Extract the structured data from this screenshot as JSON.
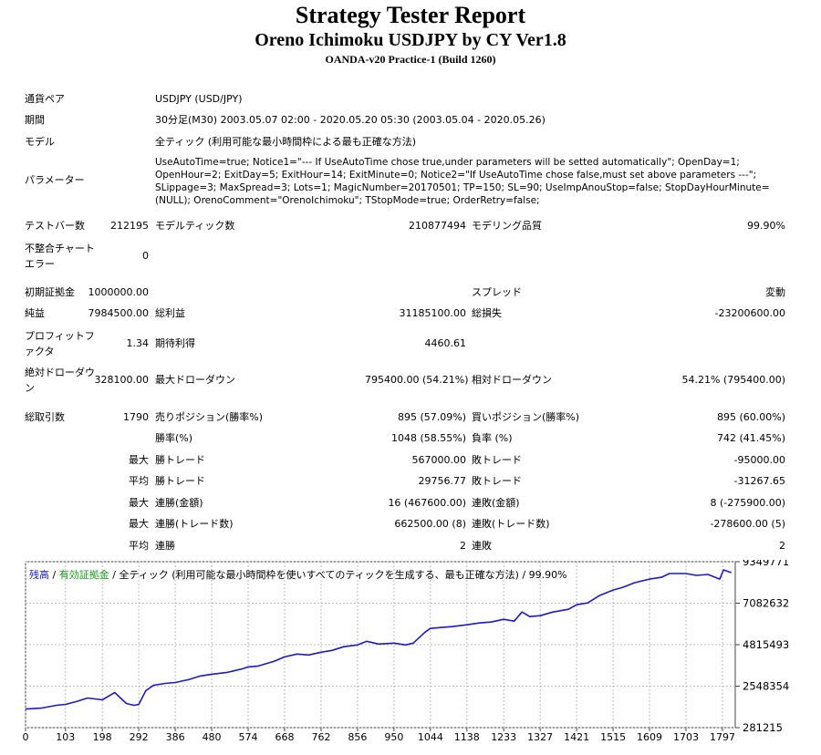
{
  "header": {
    "title": "Strategy Tester Report",
    "subtitle": "Oreno Ichimoku USDJPY by CY Ver1.8",
    "server": "OANDA-v20 Practice-1 (Build 1260)"
  },
  "info": {
    "pair_label": "通貨ペア",
    "pair_value": "USDJPY (USD/JPY)",
    "period_label": "期間",
    "period_value": "30分足(M30) 2003.05.07 02:00 - 2020.05.20 05:30 (2003.05.04 - 2020.05.26)",
    "model_label": "モデル",
    "model_value": "全ティック (利用可能な最小時間枠による最も正確な方法)",
    "params_label": "パラメーター",
    "params_value": "UseAutoTime=true; Notice1=\"--- If UseAutoTime chose true,under parameters will be setted automatically\"; OpenDay=1; OpenHour=2; ExitDay=5; ExitHour=14; ExitMinute=0; Notice2=\"If UseAutoTime chose false,must set above parameters ---\"; SLippage=3; MaxSpread=3; Lots=1; MagicNumber=20170501; TP=150; SL=90; UseImpAnouStop=false; StopDayHourMinute=(NULL); OrenoComment=\"OrenoIchimoku\"; TStopMode=true; OrderRetry=false;"
  },
  "stats": {
    "bars_label": "テストバー数",
    "bars_value": "212195",
    "ticks_label": "モデルティック数",
    "ticks_value": "210877494",
    "quality_label": "モデリング品質",
    "quality_value": "99.90%",
    "mismatch_label": "不整合チャートエラー",
    "mismatch_value": "0",
    "deposit_label": "初期証拠金",
    "deposit_value": "1000000.00",
    "spread_label": "スプレッド",
    "spread_value": "変動",
    "net_label": "純益",
    "net_value": "7984500.00",
    "gross_profit_label": "総利益",
    "gross_profit_value": "31185100.00",
    "gross_loss_label": "総損失",
    "gross_loss_value": "-23200600.00",
    "pf_label": "プロフィットファクタ",
    "pf_value": "1.34",
    "expected_label": "期待利得",
    "expected_value": "4460.61",
    "abs_dd_label": "絶対ドローダウン",
    "abs_dd_value": "328100.00",
    "max_dd_label": "最大ドローダウン",
    "max_dd_value": "795400.00 (54.21%)",
    "rel_dd_label": "相対ドローダウン",
    "rel_dd_value": "54.21% (795400.00)",
    "trades_label": "総取引数",
    "trades_value": "1790",
    "short_label": "売りポジション(勝率%)",
    "short_value": "895 (57.09%)",
    "long_label": "買いポジション(勝率%)",
    "long_value": "895 (60.00%)",
    "win_rate_label": "勝率(%)",
    "win_rate_value": "1048 (58.55%)",
    "loss_rate_label": "負率 (%)",
    "loss_rate_value": "742 (41.45%)",
    "max_word": "最大",
    "avg_word": "平均",
    "largest_win_label": "勝トレード",
    "largest_win_value": "567000.00",
    "largest_loss_label": "敗トレード",
    "largest_loss_value": "-95000.00",
    "avg_win_label": "勝トレード",
    "avg_win_value": "29756.77",
    "avg_loss_label": "敗トレード",
    "avg_loss_value": "-31267.65",
    "max_consec_wins_label": "連勝(金額)",
    "max_consec_wins_value": "16 (467600.00)",
    "max_consec_losses_label": "連敗(金額)",
    "max_consec_losses_value": "8 (-275900.00)",
    "max_consec_profit_label": "連勝(トレード数)",
    "max_consec_profit_value": "662500.00 (8)",
    "max_consec_loss_label": "連敗(トレード数)",
    "max_consec_loss_value": "-278600.00 (5)",
    "avg_consec_wins_label": "連勝",
    "avg_consec_wins_value": "2",
    "avg_consec_losses_label": "連敗",
    "avg_consec_losses_value": "2"
  },
  "chart_legend": {
    "balance": "残高",
    "sep1": " / ",
    "equity": "有効証拠金",
    "sep2": " / ",
    "rest": "全ティック (利用可能な最小時間枠を使いすべてのティックを生成する、最も正確な方法) / 99.90%"
  },
  "chart_data": {
    "type": "line",
    "title": "",
    "xlabel": "",
    "ylabel": "",
    "x_ticks": [
      "0",
      "103",
      "198",
      "292",
      "386",
      "480",
      "574",
      "668",
      "762",
      "856",
      "950",
      "1044",
      "1138",
      "1233",
      "1327",
      "1421",
      "1515",
      "1609",
      "1703",
      "1797"
    ],
    "y_ticks": [
      "9349771",
      "7082632",
      "4815493",
      "2548354",
      "281215"
    ],
    "xlim": [
      0,
      1830
    ],
    "ylim": [
      281215,
      9349771
    ],
    "grid": true,
    "colors": {
      "balance": "#1a1ac8",
      "equity": "#18a018"
    },
    "series": [
      {
        "name": "残高",
        "x": [
          0,
          40,
          80,
          103,
          130,
          160,
          198,
          230,
          260,
          280,
          292,
          310,
          330,
          360,
          386,
          420,
          450,
          480,
          520,
          560,
          574,
          600,
          640,
          668,
          700,
          730,
          762,
          790,
          820,
          856,
          880,
          910,
          950,
          980,
          1000,
          1030,
          1044,
          1070,
          1100,
          1138,
          1170,
          1200,
          1233,
          1260,
          1280,
          1300,
          1327,
          1360,
          1400,
          1421,
          1450,
          1480,
          1515,
          1540,
          1570,
          1609,
          1640,
          1660,
          1703,
          1730,
          1760,
          1790,
          1800,
          1820
        ],
        "y": [
          1300000,
          1350000,
          1500000,
          1550000,
          1700000,
          1900000,
          1800000,
          2200000,
          1600000,
          1500000,
          1550000,
          2300000,
          2600000,
          2700000,
          2750000,
          2900000,
          3100000,
          3200000,
          3300000,
          3500000,
          3600000,
          3650000,
          3900000,
          4150000,
          4300000,
          4250000,
          4400000,
          4500000,
          4700000,
          4800000,
          5000000,
          4850000,
          4900000,
          4800000,
          4900000,
          5500000,
          5700000,
          5750000,
          5800000,
          5900000,
          6000000,
          6050000,
          6200000,
          6100000,
          6600000,
          6350000,
          6400000,
          6600000,
          6750000,
          7000000,
          7100000,
          7500000,
          7800000,
          7950000,
          8200000,
          8400000,
          8500000,
          8700000,
          8700000,
          8600000,
          8650000,
          8400000,
          8900000,
          8750000
        ]
      }
    ]
  }
}
